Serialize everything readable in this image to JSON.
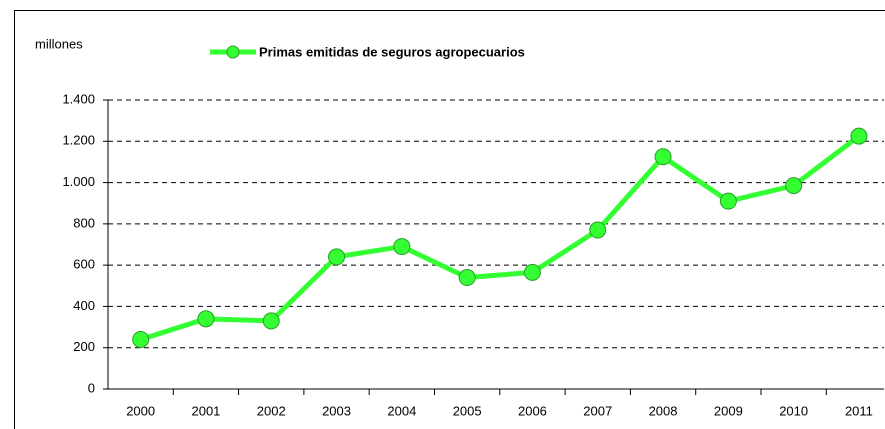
{
  "chart_data": {
    "type": "line",
    "y_label": "millones",
    "categories": [
      "2000",
      "2001",
      "2002",
      "2003",
      "2004",
      "2005",
      "2006",
      "2007",
      "2008",
      "2009",
      "2010",
      "2011"
    ],
    "series": [
      {
        "name": "Primas emitidas de seguros agropecuarios",
        "color": "#33ff33",
        "values": [
          240,
          340,
          330,
          640,
          690,
          540,
          565,
          770,
          1125,
          910,
          985,
          1225
        ]
      }
    ],
    "ylim": [
      0,
      1400
    ],
    "yticks": [
      0,
      200,
      400,
      600,
      800,
      {
        "value": 1000,
        "label": "1.000"
      },
      {
        "value": 1200,
        "label": "1.200"
      },
      {
        "value": 1400,
        "label": "1.400"
      }
    ],
    "grid": true
  }
}
